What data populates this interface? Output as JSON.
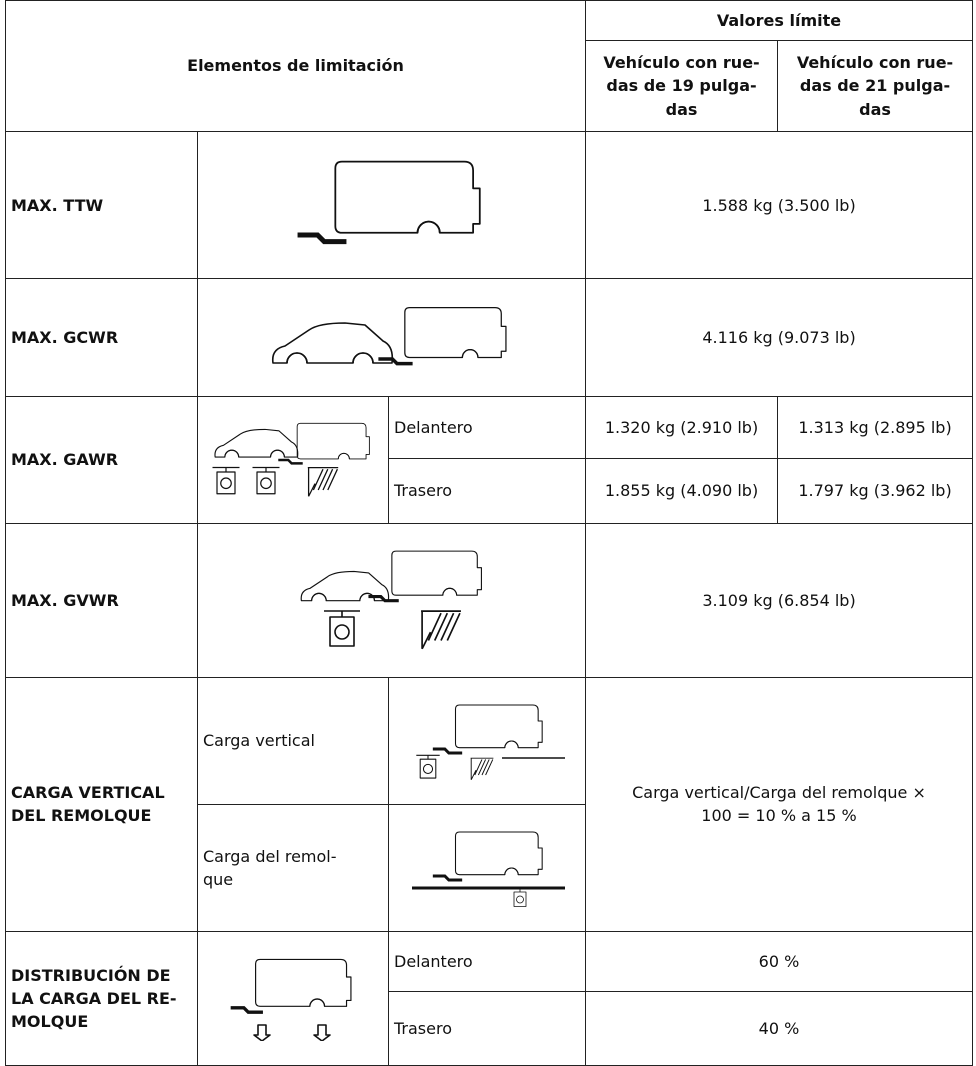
{
  "header": {
    "title": "Elementos de limitación",
    "group": "Valores límite",
    "columns": [
      "Vehículo con rue-\ndas de 19 pulga-\ndas",
      "Vehículo con rue-\ndas de 21 pulga-\ndas"
    ]
  },
  "rows": [
    {
      "label": "MAX. TTW",
      "value": "1.588 kg (3.500 lb)"
    },
    {
      "label": "MAX. GCWR",
      "value": "4.116 kg (9.073 lb)"
    },
    {
      "label": "MAX. GAWR",
      "sub": [
        {
          "label": "Delantero",
          "values": [
            "1.320 kg (2.910 lb)",
            "1.313 kg (2.895 lb)"
          ]
        },
        {
          "label": "Trasero",
          "values": [
            "1.855 kg (4.090 lb)",
            "1.797 kg (3.962 lb)"
          ]
        }
      ]
    },
    {
      "label": "MAX. GVWR",
      "value": "3.109 kg (6.854 lb)"
    },
    {
      "label": "CARGA VERTICAL\nDEL REMOLQUE",
      "sub": [
        {
          "label": "Carga vertical"
        },
        {
          "label": "Carga del remol-\nque"
        }
      ],
      "value": "Carga vertical/Carga del remolque ×\n100 = 10 % a 15 %"
    },
    {
      "label": "DISTRIBUCIÓN DE\nLA CARGA DEL RE-\nMOLQUE",
      "sub": [
        {
          "label": "Delantero",
          "value": "60 %"
        },
        {
          "label": "Trasero",
          "value": "40 %"
        }
      ]
    }
  ]
}
